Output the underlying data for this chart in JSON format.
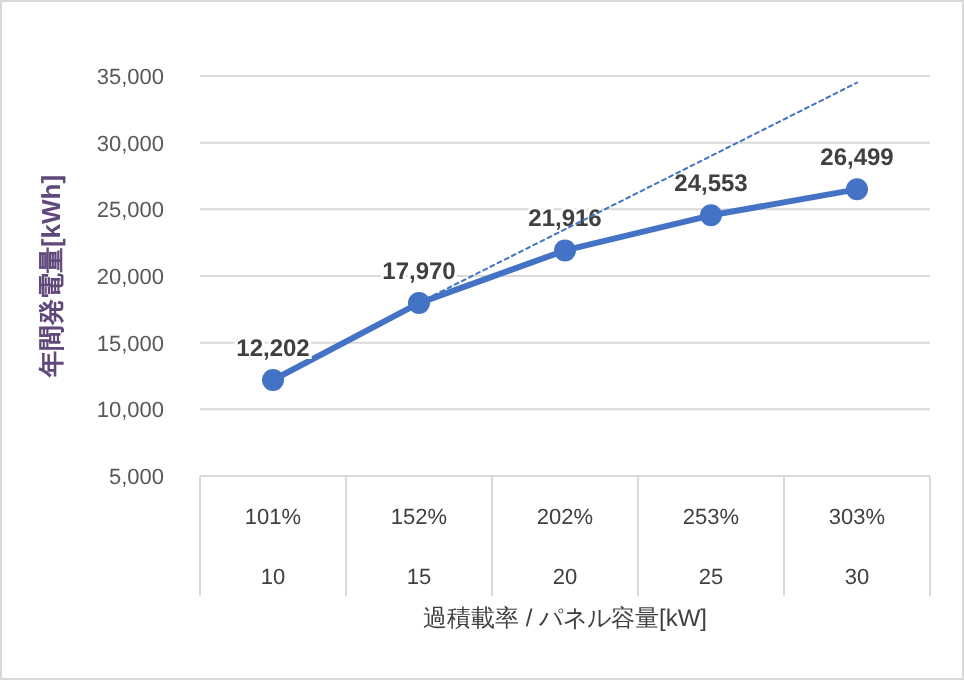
{
  "chart_data": {
    "type": "line",
    "xlabel": "過積載率 / パネル容量[kW]",
    "ylabel": "年間発電量[kWh]",
    "categories": [
      "101%\n10",
      "152%\n15",
      "202%\n20",
      "253%\n25",
      "303%\n30"
    ],
    "ylim": [
      5000,
      35000
    ],
    "yticks": [
      {
        "value": 5000,
        "label": "5,000"
      },
      {
        "value": 10000,
        "label": "10,000"
      },
      {
        "value": 15000,
        "label": "15,000"
      },
      {
        "value": 20000,
        "label": "20,000"
      },
      {
        "value": 25000,
        "label": "25,000"
      },
      {
        "value": 30000,
        "label": "30,000"
      },
      {
        "value": 35000,
        "label": "35,000"
      }
    ],
    "grid": "y",
    "series": [
      {
        "color": "#4472c4",
        "values": [
          12202,
          17970,
          21916,
          24553,
          26499
        ],
        "marker": "circle",
        "line_style": "solid",
        "value_labels": [
          "12,202",
          "17,970",
          "21,916",
          "24,553",
          "26,499"
        ]
      },
      {
        "color": "#4472c4",
        "values": [
          null,
          18000,
          23500,
          29000,
          34500
        ],
        "marker": "none",
        "line_style": "dotted"
      }
    ]
  }
}
